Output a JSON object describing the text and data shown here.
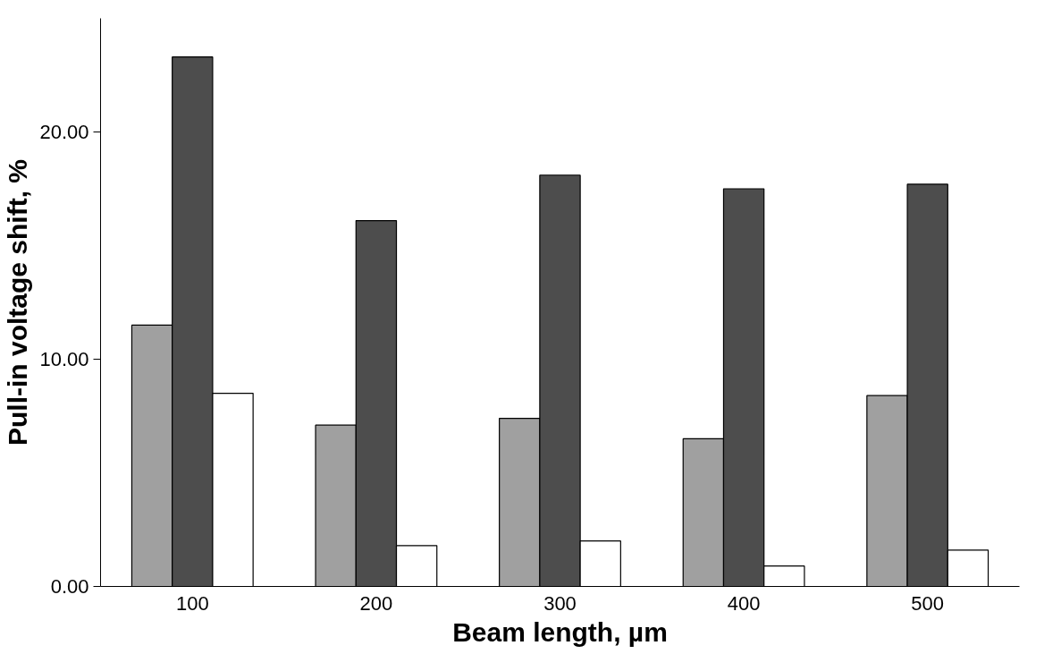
{
  "chart_data": {
    "type": "bar",
    "xlabel": "Beam length, µm",
    "ylabel": "Pull-in voltage shift, %",
    "categories": [
      "100",
      "200",
      "300",
      "400",
      "500"
    ],
    "series": [
      {
        "color": "#a0a0a0",
        "values": [
          11.5,
          7.1,
          7.4,
          6.5,
          8.4
        ]
      },
      {
        "color": "#4d4d4d",
        "values": [
          23.3,
          16.1,
          18.1,
          17.5,
          17.7
        ]
      },
      {
        "color": "#ffffff",
        "values": [
          8.5,
          1.8,
          2.0,
          0.9,
          1.6
        ]
      }
    ],
    "ylim": [
      0,
      25
    ],
    "yticks": [
      {
        "value": 0,
        "label": "0.00"
      },
      {
        "value": 10,
        "label": "10.00"
      },
      {
        "value": 20,
        "label": "20.00"
      }
    ],
    "grid": false
  }
}
